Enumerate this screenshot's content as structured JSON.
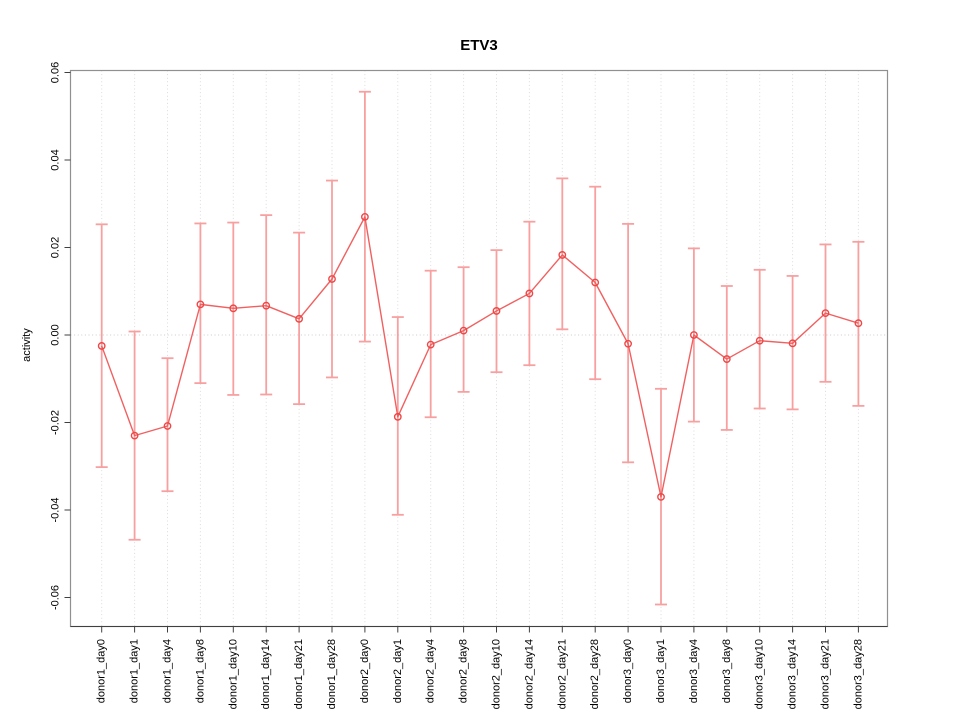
{
  "figure": {
    "title": "ETV3",
    "ylabel": "activity"
  },
  "chart_data": {
    "type": "line",
    "subtype": "points-with-error-bars",
    "title": "ETV3",
    "xlabel": "",
    "ylabel": "activity",
    "ylim": [
      -0.065,
      0.06
    ],
    "y_ticks": [
      0.06,
      0.04,
      0.02,
      0,
      -0.02,
      -0.04,
      -0.06
    ],
    "y_tick_labels": [
      "0.06",
      "0.04",
      "0.02",
      "0.00",
      "-0.02",
      "-0.04",
      "-0.06"
    ],
    "grid": "vertical dotted line at every category; horizontal dotted line at y=0",
    "legend": "none",
    "categories": [
      "donor1_day0",
      "donor1_day1",
      "donor1_day4",
      "donor1_day8",
      "donor1_day10",
      "donor1_day14",
      "donor1_day21",
      "donor1_day28",
      "donor2_day0",
      "donor2_day1",
      "donor2_day4",
      "donor2_day8",
      "donor2_day10",
      "donor2_day14",
      "donor2_day21",
      "donor2_day28",
      "donor3_day0",
      "donor3_day1",
      "donor3_day4",
      "donor3_day8",
      "donor3_day10",
      "donor3_day14",
      "donor3_day21",
      "donor3_day28"
    ],
    "series": [
      {
        "name": "activity",
        "values": [
          -0.0025,
          -0.023,
          -0.0208,
          0.007,
          0.0061,
          0.0067,
          0.0037,
          0.0128,
          0.027,
          -0.0187,
          -0.0022,
          0.001,
          0.0055,
          0.0095,
          0.0183,
          0.012,
          -0.002,
          -0.037,
          0.0,
          -0.0055,
          -0.0013,
          -0.0019,
          0.005,
          0.0027
        ],
        "err_high": [
          0.0253,
          0.0008,
          -0.0053,
          0.0255,
          0.0257,
          0.0274,
          0.0234,
          0.0353,
          0.0556,
          0.0041,
          0.0147,
          0.0155,
          0.0194,
          0.0259,
          0.0358,
          0.0339,
          0.0254,
          -0.0123,
          0.0198,
          0.0112,
          0.0149,
          0.0135,
          0.0207,
          0.0213
        ],
        "err_low": [
          -0.0302,
          -0.0468,
          -0.0357,
          -0.011,
          -0.0137,
          -0.0136,
          -0.0158,
          -0.0097,
          -0.0015,
          -0.0411,
          -0.0188,
          -0.013,
          -0.0085,
          -0.0069,
          0.0013,
          -0.0101,
          -0.0291,
          -0.0616,
          -0.0198,
          -0.0217,
          -0.0168,
          -0.017,
          -0.0107,
          -0.0162
        ]
      }
    ],
    "colors": {
      "error_bar": "#F8A0A0",
      "line": "#F16060",
      "point": "#ED4747",
      "gridline": "#DCDCDC",
      "zero_line": "#CDCDCD",
      "box": "#909090",
      "axis": "#404040",
      "text": "#000000",
      "background": "#FFFFFF"
    }
  }
}
